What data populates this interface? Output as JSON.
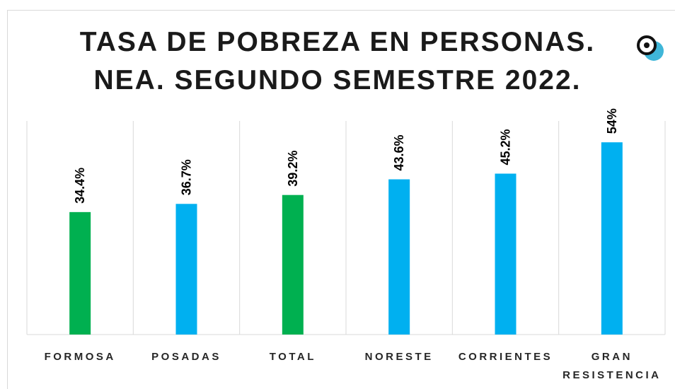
{
  "chart_data": {
    "type": "bar",
    "title": [
      "TASA DE POBREZA EN PERSONAS.",
      "NEA. SEGUNDO SEMESTRE 2022."
    ],
    "categories": [
      "FORMOSA",
      "POSADAS",
      "TOTAL",
      "NORESTE",
      "CORRIENTES",
      "GRAN RESISTENCIA"
    ],
    "values": [
      34.4,
      36.7,
      39.2,
      43.6,
      45.2,
      54
    ],
    "value_labels": [
      "34.4%",
      "36.7%",
      "39.2%",
      "43.6%",
      "45.2%",
      "54%"
    ],
    "colors": [
      "#00b050",
      "#00b0f0",
      "#00b050",
      "#00b0f0",
      "#00b0f0",
      "#00b0f0"
    ],
    "ylim": [
      0,
      60
    ]
  }
}
